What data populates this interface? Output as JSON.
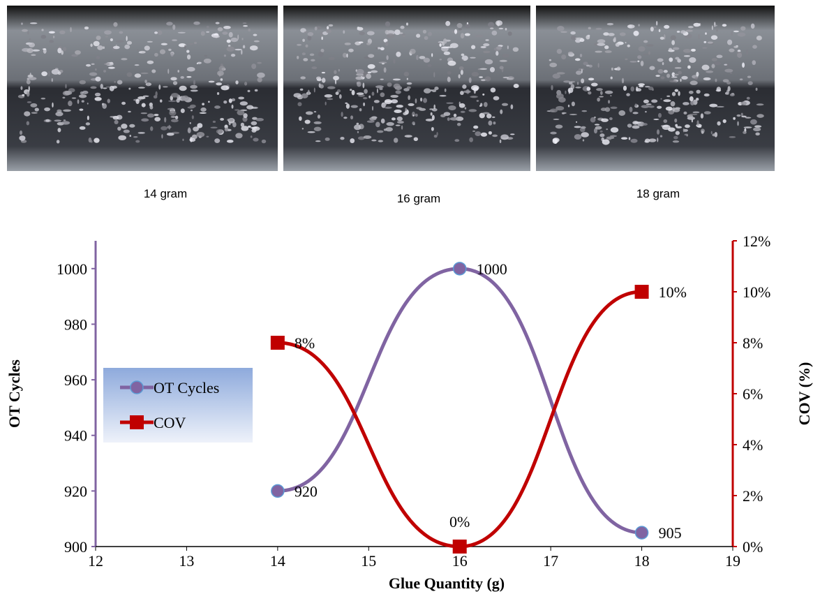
{
  "captions": [
    "14 gram",
    "16 gram",
    "18 gram"
  ],
  "chart_data": {
    "type": "line",
    "xlabel": "Glue Quantity (g)",
    "ylabel": "OT Cycles",
    "y2label": "COV (%)",
    "x": [
      14,
      16,
      18
    ],
    "series": [
      {
        "name": "OT Cycles",
        "color": "#8064a2",
        "marker": "circle",
        "values": [
          920,
          1000,
          905
        ]
      },
      {
        "name": "COV",
        "color": "#c00000",
        "marker": "square",
        "axis": "y2",
        "values": [
          8,
          0,
          10
        ],
        "value_labels": [
          "8%",
          "0%",
          "10%"
        ]
      }
    ],
    "xlim": [
      12,
      19
    ],
    "xticks": [
      12,
      13,
      14,
      15,
      16,
      17,
      18,
      19
    ],
    "ylim": [
      900,
      1010
    ],
    "yticks": [
      900,
      920,
      940,
      960,
      980,
      1000
    ],
    "y2lim": [
      0,
      12
    ],
    "y2ticks": [
      {
        "value": 0,
        "label": "0%"
      },
      {
        "value": 2,
        "label": "2%"
      },
      {
        "value": 4,
        "label": "4%"
      },
      {
        "value": 6,
        "label": "6%"
      },
      {
        "value": 8,
        "label": "8%"
      },
      {
        "value": 10,
        "label": "10%"
      },
      {
        "value": 12,
        "label": "12%"
      }
    ],
    "smooth": true,
    "legend": "left"
  }
}
